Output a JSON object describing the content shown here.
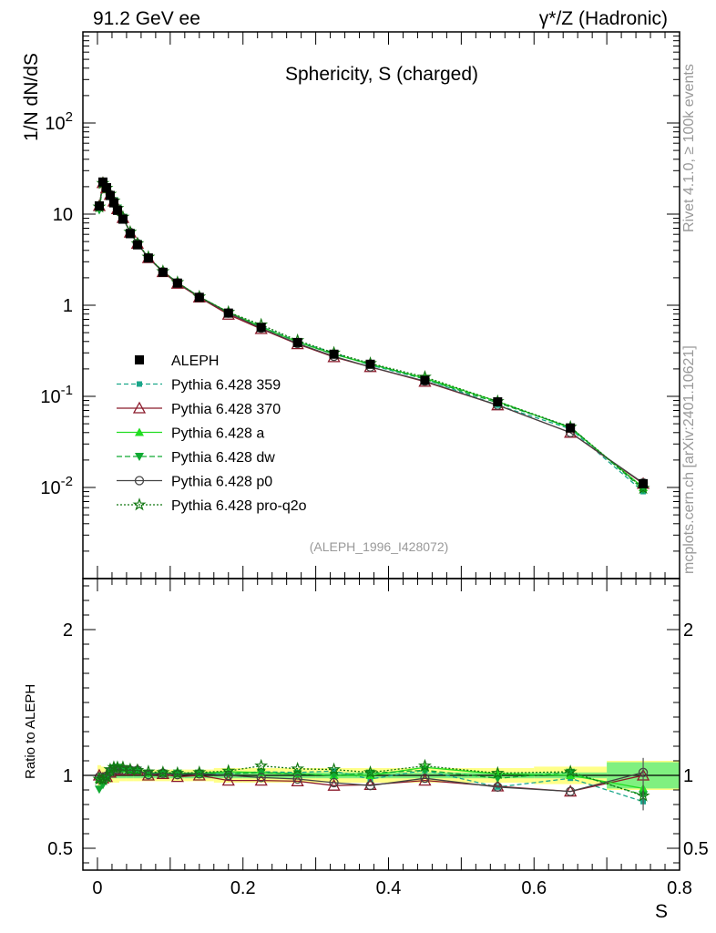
{
  "header": {
    "left": "91.2 GeV ee",
    "right": "γ*/Z (Hadronic)"
  },
  "side_labels": {
    "rivet": "Rivet 4.1.0, ≥ 100k events",
    "mcplots": "mcplots.cern.ch [arXiv:2401.10621]"
  },
  "chart_data": [
    {
      "type": "line",
      "title": "Sphericity, S (charged)",
      "xlabel": "S",
      "ylabel": "1/N  dN/dS",
      "yscale": "log",
      "xlim": [
        -0.02,
        0.8
      ],
      "ylim": [
        0.001,
        1000
      ],
      "y_ticks": [
        "10^-2",
        "10^-1",
        "1",
        "10",
        "10^2"
      ],
      "annotation": "(ALEPH_1996_I428072)",
      "legend_position": "middle-left",
      "x": [
        0.0025,
        0.0075,
        0.0125,
        0.0175,
        0.0225,
        0.0275,
        0.035,
        0.045,
        0.055,
        0.07,
        0.09,
        0.11,
        0.14,
        0.18,
        0.225,
        0.275,
        0.325,
        0.375,
        0.45,
        0.55,
        0.65,
        0.75
      ],
      "series": [
        {
          "name": "ALEPH",
          "color": "#000000",
          "marker": "square",
          "values": [
            12.3,
            22.5,
            19.5,
            16.0,
            13.3,
            11.0,
            8.8,
            6.1,
            4.6,
            3.3,
            2.3,
            1.75,
            1.22,
            0.82,
            0.57,
            0.39,
            0.29,
            0.225,
            0.15,
            0.087,
            0.045,
            0.011
          ]
        },
        {
          "name": "Pythia 6.428 359",
          "color": "#1aa68a",
          "marker": "square-small",
          "dash": "5,3",
          "values": [
            12.0,
            21.5,
            19.0,
            16.3,
            13.9,
            11.6,
            9.2,
            6.3,
            4.7,
            3.35,
            2.35,
            1.77,
            1.24,
            0.83,
            0.585,
            0.4,
            0.3,
            0.22,
            0.155,
            0.08,
            0.044,
            0.009
          ]
        },
        {
          "name": "Pythia 6.428 370",
          "color": "#8b1a2b",
          "marker": "triangle-open",
          "values": [
            12.3,
            22.0,
            19.3,
            16.3,
            13.8,
            11.4,
            9.1,
            6.3,
            4.75,
            3.3,
            2.32,
            1.73,
            1.22,
            0.79,
            0.55,
            0.375,
            0.27,
            0.21,
            0.145,
            0.08,
            0.04,
            0.011
          ]
        },
        {
          "name": "Pythia 6.428 a",
          "color": "#22dd22",
          "marker": "triangle",
          "values": [
            12.0,
            21.7,
            19.2,
            16.5,
            14.0,
            11.5,
            9.2,
            6.3,
            4.75,
            3.35,
            2.35,
            1.78,
            1.24,
            0.84,
            0.58,
            0.395,
            0.29,
            0.225,
            0.158,
            0.088,
            0.045,
            0.01
          ]
        },
        {
          "name": "Pythia 6.428 dw",
          "color": "#11aa33",
          "marker": "triangle-down",
          "dash": "6,3",
          "values": [
            11.1,
            21.0,
            19.0,
            16.4,
            14.0,
            11.6,
            9.2,
            6.3,
            4.75,
            3.35,
            2.33,
            1.78,
            1.24,
            0.83,
            0.58,
            0.395,
            0.29,
            0.228,
            0.155,
            0.085,
            0.046,
            0.0095
          ]
        },
        {
          "name": "Pythia 6.428 p0",
          "color": "#444444",
          "marker": "circle-open",
          "values": [
            12.2,
            22.0,
            19.4,
            16.4,
            13.8,
            11.4,
            9.1,
            6.3,
            4.75,
            3.32,
            2.33,
            1.76,
            1.23,
            0.82,
            0.56,
            0.38,
            0.275,
            0.21,
            0.147,
            0.08,
            0.04,
            0.0112
          ]
        },
        {
          "name": "Pythia 6.428 pro-q2o",
          "color": "#117711",
          "marker": "star",
          "dash": "2,2",
          "values": [
            12.0,
            21.8,
            19.3,
            16.6,
            14.0,
            11.6,
            9.3,
            6.35,
            4.75,
            3.38,
            2.35,
            1.78,
            1.24,
            0.84,
            0.61,
            0.41,
            0.3,
            0.23,
            0.163,
            0.088,
            0.046,
            0.0098
          ]
        }
      ]
    },
    {
      "type": "line",
      "title": "",
      "xlabel": "S",
      "ylabel": "Ratio to ALEPH",
      "xlim": [
        -0.02,
        0.8
      ],
      "ylim": [
        0.35,
        2.35
      ],
      "x_ticks": [
        "0",
        "0.2",
        "0.4",
        "0.6",
        "0.8"
      ],
      "y_ticks": [
        "0.5",
        "1",
        "2"
      ],
      "band_edges": [
        0,
        0.005,
        0.01,
        0.015,
        0.02,
        0.025,
        0.03,
        0.04,
        0.05,
        0.06,
        0.08,
        0.1,
        0.12,
        0.16,
        0.2,
        0.25,
        0.3,
        0.35,
        0.4,
        0.5,
        0.6,
        0.7,
        0.8
      ],
      "band_stat": [
        0.02,
        0.02,
        0.02,
        0.02,
        0.02,
        0.02,
        0.02,
        0.02,
        0.02,
        0.02,
        0.02,
        0.02,
        0.02,
        0.02,
        0.02,
        0.02,
        0.02,
        0.02,
        0.02,
        0.02,
        0.02,
        0.09
      ],
      "band_total": [
        0.07,
        0.06,
        0.05,
        0.05,
        0.05,
        0.05,
        0.04,
        0.04,
        0.04,
        0.04,
        0.04,
        0.04,
        0.04,
        0.05,
        0.05,
        0.05,
        0.05,
        0.05,
        0.05,
        0.05,
        0.06,
        0.1
      ],
      "band_stat_color": "#80f080",
      "band_total_color": "#ffff88",
      "x": [
        0.0025,
        0.0075,
        0.0125,
        0.0175,
        0.0225,
        0.0275,
        0.035,
        0.045,
        0.055,
        0.07,
        0.09,
        0.11,
        0.14,
        0.18,
        0.225,
        0.275,
        0.325,
        0.375,
        0.45,
        0.55,
        0.65,
        0.75
      ],
      "series": [
        {
          "name": "Pythia 6.428 359",
          "color": "#1aa68a",
          "dash": "5,3",
          "values": [
            0.975,
            0.955,
            0.975,
            1.02,
            1.045,
            1.055,
            1.045,
            1.035,
            1.02,
            1.015,
            1.02,
            1.01,
            1.015,
            1.01,
            1.025,
            1.02,
            1.03,
            0.975,
            1.035,
            0.92,
            0.98,
            0.82
          ]
        },
        {
          "name": "Pythia 6.428 370",
          "color": "#8b1a2b",
          "values": [
            1.0,
            0.98,
            0.99,
            1.02,
            1.04,
            1.04,
            1.035,
            1.035,
            1.035,
            1.0,
            1.01,
            0.99,
            1.0,
            0.965,
            0.965,
            0.96,
            0.93,
            0.935,
            0.965,
            0.925,
            0.89,
            1.0
          ]
        },
        {
          "name": "Pythia 6.428 a",
          "color": "#22dd22",
          "values": [
            0.975,
            0.965,
            0.985,
            1.03,
            1.055,
            1.045,
            1.045,
            1.035,
            1.035,
            1.015,
            1.02,
            1.015,
            1.015,
            1.025,
            1.02,
            1.01,
            1.0,
            1.0,
            1.055,
            1.01,
            1.0,
            0.91
          ]
        },
        {
          "name": "Pythia 6.428 dw",
          "color": "#11aa33",
          "dash": "6,3",
          "values": [
            0.905,
            0.935,
            0.975,
            1.025,
            1.05,
            1.055,
            1.045,
            1.035,
            1.035,
            1.015,
            1.015,
            1.015,
            1.015,
            1.01,
            1.02,
            1.01,
            1.0,
            1.015,
            1.035,
            0.98,
            1.02,
            0.865
          ]
        },
        {
          "name": "Pythia 6.428 p0",
          "color": "#444444",
          "values": [
            0.99,
            0.98,
            0.995,
            1.025,
            1.04,
            1.04,
            1.035,
            1.035,
            1.035,
            1.005,
            1.015,
            1.005,
            1.01,
            1.0,
            0.985,
            0.975,
            0.95,
            0.93,
            0.98,
            0.92,
            0.89,
            1.02
          ]
        },
        {
          "name": "Pythia 6.428 pro-q2o",
          "color": "#117711",
          "dash": "2,2",
          "values": [
            0.975,
            0.97,
            0.99,
            1.04,
            1.055,
            1.055,
            1.055,
            1.04,
            1.035,
            1.025,
            1.02,
            1.015,
            1.02,
            1.03,
            1.065,
            1.045,
            1.04,
            1.02,
            1.065,
            1.015,
            1.025,
            0.86
          ]
        }
      ]
    }
  ]
}
